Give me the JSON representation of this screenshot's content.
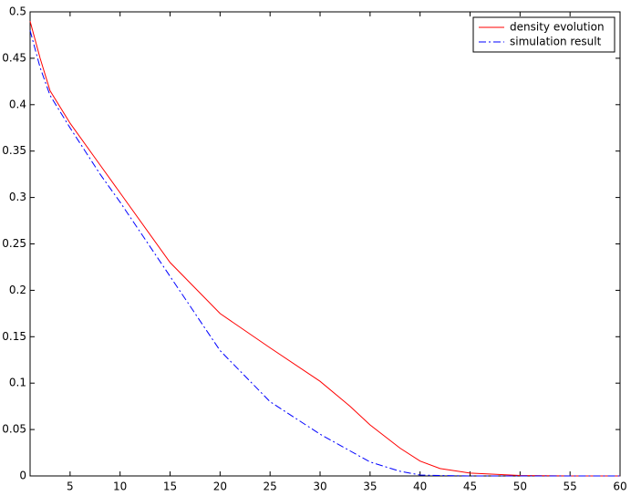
{
  "chart_data": {
    "type": "line",
    "x": [
      1,
      2,
      3,
      5,
      8,
      10,
      15,
      20,
      25,
      30,
      33,
      35,
      38,
      40,
      42,
      45,
      50,
      55,
      60
    ],
    "series": [
      {
        "name": "density evolution",
        "color": "#ff0000",
        "dash": "solid",
        "values": [
          0.49,
          0.45,
          0.415,
          0.38,
          0.335,
          0.305,
          0.23,
          0.175,
          0.138,
          0.102,
          0.075,
          0.055,
          0.03,
          0.016,
          0.008,
          0.003,
          0.0005,
          0,
          0
        ]
      },
      {
        "name": "simulation result",
        "color": "#0000ff",
        "dash": "dashdot",
        "values": [
          0.48,
          0.44,
          0.41,
          0.375,
          0.325,
          0.295,
          0.215,
          0.135,
          0.08,
          0.045,
          0.027,
          0.015,
          0.005,
          0.001,
          0.0005,
          0,
          0,
          0,
          0
        ]
      }
    ],
    "xlim": [
      1,
      60
    ],
    "xticks": [
      5,
      10,
      15,
      20,
      25,
      30,
      35,
      40,
      45,
      50,
      55,
      60
    ],
    "ylim": [
      0,
      0.5
    ],
    "yticks": [
      0,
      0.05,
      0.1,
      0.15,
      0.2,
      0.25,
      0.3,
      0.35,
      0.4,
      0.45,
      0.5
    ],
    "legend": "top-right",
    "grid": false
  }
}
